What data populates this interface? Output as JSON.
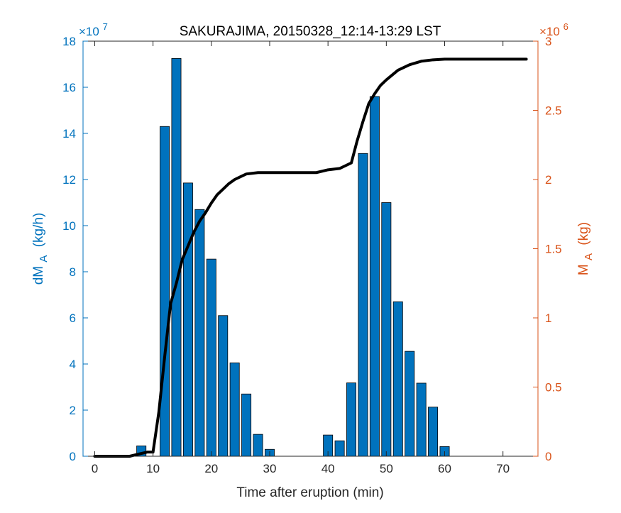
{
  "chart_data": {
    "type": "bar",
    "title": "SAKURAJIMA, 20150328_12:14-13:29 LST",
    "xlabel": "Time after eruption (min)",
    "x_ticks": [
      "0",
      "10",
      "20",
      "30",
      "40",
      "50",
      "60",
      "70"
    ],
    "xlim": [
      -2,
      76
    ],
    "left_axis": {
      "label_main": "dM",
      "label_sub": "A",
      "label_units": "(kg/h)",
      "exponent_base": "×10",
      "exponent": "7",
      "ylim": [
        0,
        18
      ],
      "ticks": [
        "0",
        "2",
        "4",
        "6",
        "8",
        "10",
        "12",
        "14",
        "16",
        "18"
      ],
      "color": "#0072BD"
    },
    "right_axis": {
      "label_main": "M",
      "label_sub": "A",
      "label_units": "(kg)",
      "exponent_base": "×10",
      "exponent": "6",
      "ylim": [
        0,
        3
      ],
      "ticks": [
        "0",
        "0.5",
        "1",
        "1.5",
        "2",
        "2.5",
        "3"
      ],
      "color": "#D95319"
    },
    "series": [
      {
        "kind": "bar",
        "axis": "left",
        "color": "#0072BD",
        "bar_width": 1.6,
        "x": [
          8,
          12,
          14,
          16,
          18,
          20,
          22,
          24,
          26,
          28,
          30,
          40,
          42,
          44,
          46,
          48,
          50,
          52,
          54,
          56,
          58,
          60
        ],
        "values": [
          0.45,
          14.3,
          17.25,
          11.85,
          10.7,
          8.55,
          6.1,
          4.05,
          2.7,
          0.95,
          0.3,
          0.92,
          0.67,
          3.18,
          13.13,
          15.6,
          11.0,
          6.7,
          4.55,
          3.17,
          2.13,
          0.42
        ]
      },
      {
        "kind": "line",
        "axis": "right",
        "color": "#000000",
        "x": [
          0,
          6,
          8,
          9,
          10,
          11,
          12,
          13,
          14,
          15,
          16,
          17,
          18,
          19,
          20,
          21,
          22,
          23,
          24,
          25,
          26,
          27,
          28,
          29,
          30,
          32,
          34,
          36,
          38,
          40,
          42,
          43,
          44,
          45,
          46,
          47,
          48,
          49,
          50,
          52,
          54,
          56,
          58,
          60,
          65,
          70,
          74
        ],
        "values": [
          0,
          0,
          0.02,
          0.03,
          0.03,
          0.32,
          0.72,
          1.1,
          1.25,
          1.42,
          1.52,
          1.62,
          1.7,
          1.76,
          1.83,
          1.89,
          1.93,
          1.97,
          2.0,
          2.02,
          2.04,
          2.045,
          2.05,
          2.05,
          2.05,
          2.05,
          2.05,
          2.05,
          2.05,
          2.07,
          2.08,
          2.1,
          2.12,
          2.28,
          2.42,
          2.55,
          2.62,
          2.68,
          2.72,
          2.79,
          2.83,
          2.855,
          2.865,
          2.87,
          2.87,
          2.87,
          2.87
        ]
      }
    ]
  }
}
